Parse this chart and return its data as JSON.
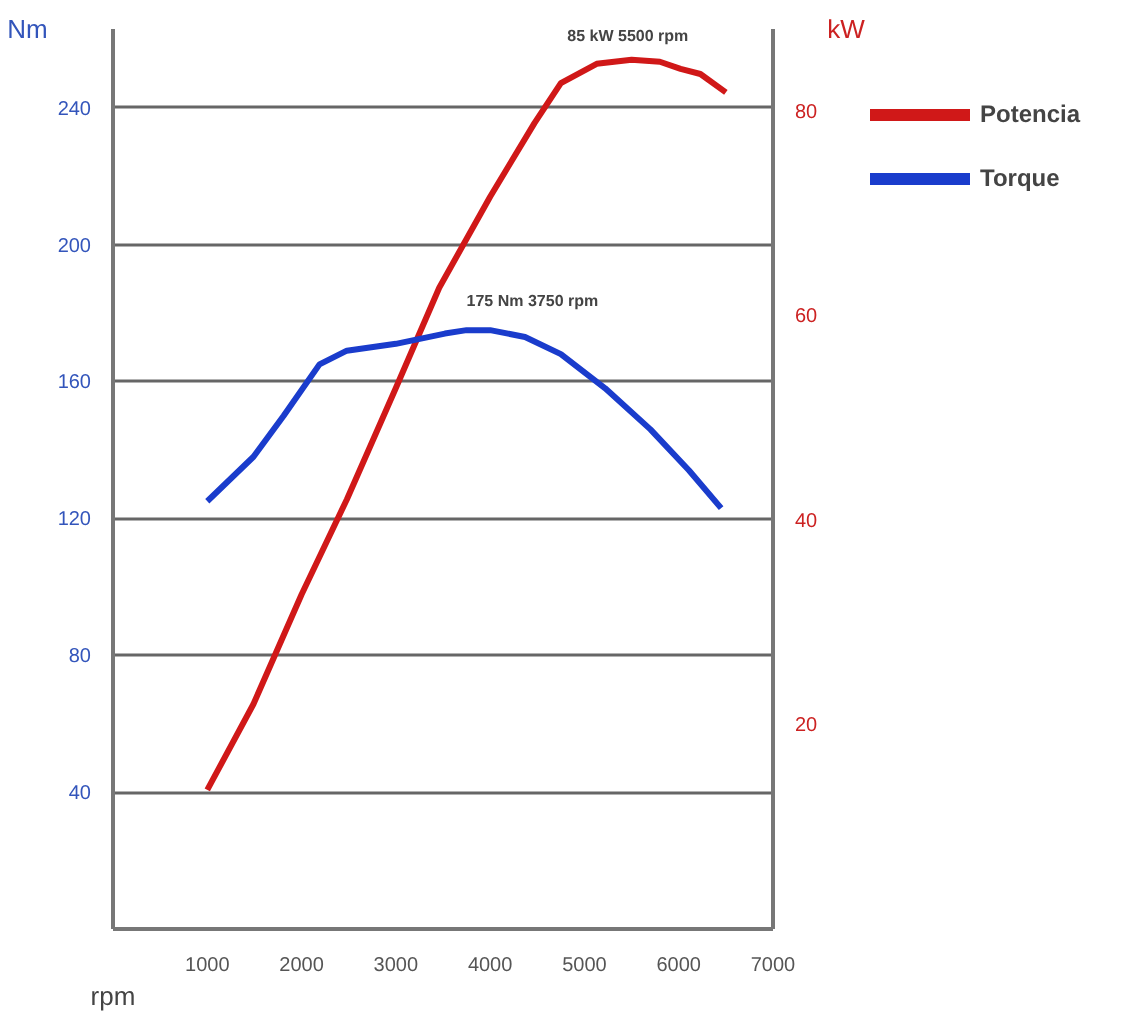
{
  "chart_data": {
    "type": "line",
    "xlabel": "rpm",
    "ylabel": "Nm",
    "y2label": "kW",
    "xlim": [
      0,
      7000
    ],
    "xticks": [
      1000,
      2000,
      3000,
      4000,
      5000,
      6000,
      7000
    ],
    "ylim": [
      0,
      263
    ],
    "yticks": [
      40,
      80,
      120,
      160,
      200,
      240
    ],
    "y2lim": [
      0,
      88
    ],
    "y2ticks": [
      20,
      40,
      60,
      80
    ],
    "grid": "y",
    "legend": "right",
    "line_style": "solid",
    "series": [
      {
        "name": "Potencia",
        "color": "#d01818",
        "axis": "y2",
        "x": [
          1000,
          1490,
          2000,
          2480,
          3000,
          3460,
          4000,
          4470,
          4750,
          5130,
          5500,
          5800,
          6020,
          6230,
          6500
        ],
        "values": [
          13.6,
          22,
          32.7,
          42,
          52.9,
          62.7,
          71.6,
          78.8,
          82.7,
          84.6,
          85,
          84.8,
          84.1,
          83.6,
          81.8
        ]
      },
      {
        "name": "Torque",
        "color": "#1a3ccc",
        "x": [
          1000,
          1490,
          1810,
          2190,
          2480,
          3000,
          3520,
          3750,
          4000,
          4370,
          4750,
          5220,
          5700,
          6110,
          6450
        ],
        "values": [
          125,
          138,
          150,
          165,
          169,
          171,
          174,
          175,
          175,
          173,
          168,
          158,
          146,
          134,
          123
        ]
      }
    ],
    "annotations": [
      "85 kW 5500 rpm",
      {
        "text": "175 Nm 3750 rpm",
        "x": 3750,
        "y": 175
      }
    ]
  }
}
